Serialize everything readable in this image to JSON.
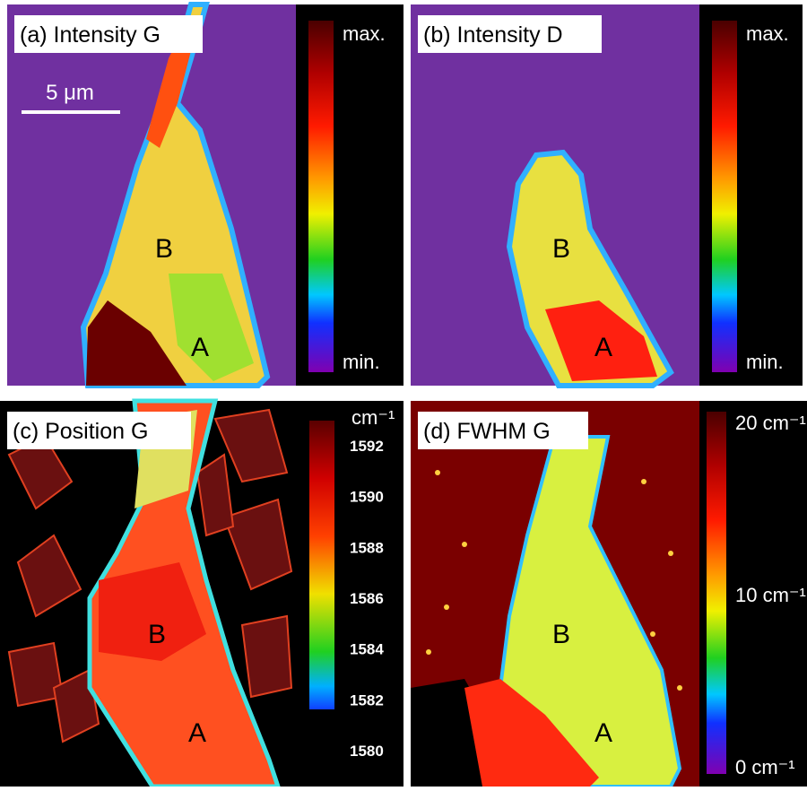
{
  "panels": [
    {
      "label": "(a) Intensity G",
      "points": [
        "B",
        "A"
      ],
      "scale_bar": "5 μm",
      "colorbar": {
        "top": "max.",
        "bottom": "min."
      }
    },
    {
      "label": "(b) Intensity D",
      "points": [
        "B",
        "A"
      ],
      "colorbar": {
        "top": "max.",
        "bottom": "min."
      }
    },
    {
      "label": "(c) Position G",
      "points": [
        "B",
        "A"
      ],
      "colorbar": {
        "unit": "cm⁻¹",
        "ticks": [
          1592,
          1590,
          1588,
          1586,
          1584,
          1582,
          1580
        ]
      }
    },
    {
      "label": "(d) FWHM G",
      "points": [
        "B",
        "A"
      ],
      "colorbar": {
        "ticks": [
          "20 cm⁻¹",
          "10 cm⁻¹",
          "0 cm⁻¹"
        ]
      }
    }
  ]
}
